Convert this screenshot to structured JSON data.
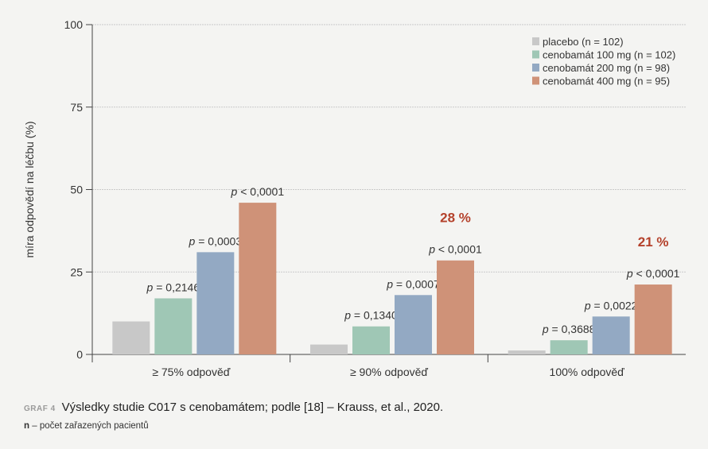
{
  "chart_data": {
    "type": "bar",
    "ylabel": "míra odpovědí na léčbu (%)",
    "ylim": [
      0,
      100
    ],
    "yticks": [
      "0",
      "25",
      "50",
      "75",
      "100"
    ],
    "categories": [
      "≥ 75% odpověď",
      "≥ 90% odpověď",
      "100% odpověď"
    ],
    "series": [
      {
        "name": "placebo (n = 102)",
        "color": "#c8c8c8",
        "values": [
          10,
          3,
          1.2
        ]
      },
      {
        "name": "cenobamát 100 mg (n = 102)",
        "color": "#9fc7b5",
        "values": [
          17,
          8.5,
          4.3
        ]
      },
      {
        "name": "cenobamát 200 mg (n = 98)",
        "color": "#93a9c3",
        "values": [
          31,
          18,
          11.5
        ]
      },
      {
        "name": "cenobamát 400 mg (n = 95)",
        "color": "#cf9278",
        "values": [
          46,
          28.5,
          21.2
        ]
      }
    ],
    "pvalues": [
      [
        "",
        "p = 0,2146",
        "p = 0,0003",
        "p < 0,0001"
      ],
      [
        "",
        "p = 0,1340",
        "p = 0,0007",
        "p < 0,0001"
      ],
      [
        "",
        "p = 0,3688",
        "p = 0,0022",
        "p < 0,0001"
      ]
    ],
    "highlights": [
      "",
      "28 %",
      "21 %"
    ],
    "highlight_color": "#b4412b",
    "grid": true,
    "legend_position": "top-right"
  },
  "caption": {
    "tag": "GRAF 4",
    "text": "Výsledky studie C017 s cenobamátem; podle [18] – Krauss, et al., 2020."
  },
  "note": {
    "label": "n",
    "text": " – počet zařazených pacientů"
  }
}
